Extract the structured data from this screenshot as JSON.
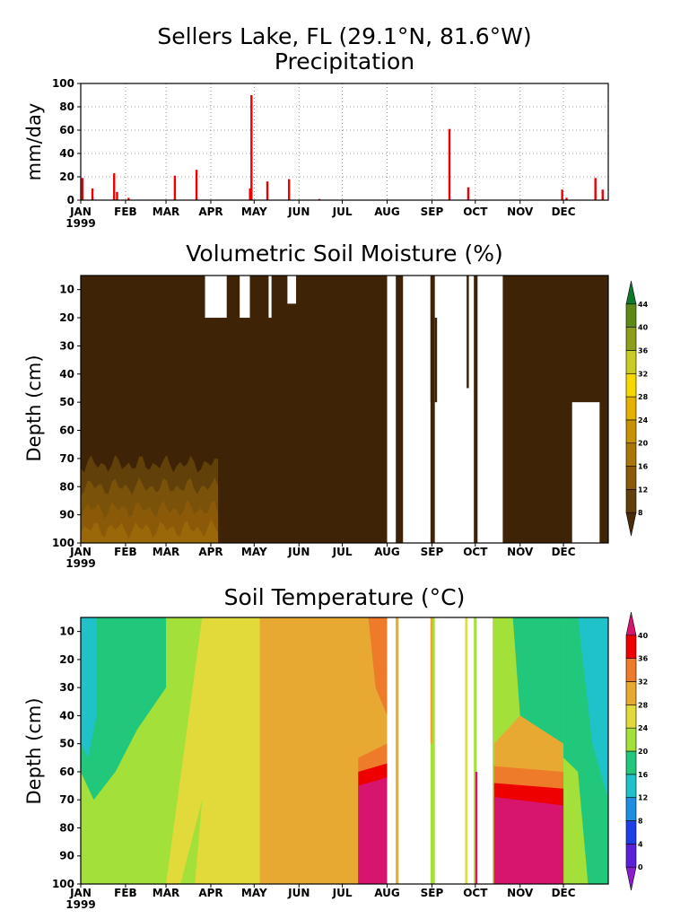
{
  "header": {
    "title": "Sellers Lake, FL (29.1°N, 81.6°W)"
  },
  "panels": {
    "precip": {
      "title": "Precipitation",
      "ylabel": "mm/day"
    },
    "moisture": {
      "title": "Volumetric Soil Moisture (%)",
      "ylabel": "Depth (cm)"
    },
    "temperature": {
      "title": "Soil Temperature (°C)",
      "ylabel": "Depth (cm)"
    }
  },
  "chart_data": [
    {
      "type": "bar",
      "title": "Precipitation",
      "ylabel": "mm/day",
      "xlabel": "",
      "year": "1999",
      "x_ticks": [
        "JAN",
        "FEB",
        "MAR",
        "APR",
        "MAY",
        "JUN",
        "JUL",
        "AUG",
        "SEP",
        "OCT",
        "NOV",
        "DEC"
      ],
      "x_tick_days": [
        1,
        32,
        60,
        91,
        121,
        152,
        182,
        213,
        244,
        274,
        305,
        335
      ],
      "xlim": [
        1,
        366
      ],
      "ylim": [
        0,
        100
      ],
      "y_ticks": [
        0,
        20,
        40,
        60,
        80,
        100
      ],
      "grid": true,
      "color": "#ee0000",
      "series": [
        {
          "day": [
            2,
            9,
            24,
            26,
            34,
            66,
            81,
            118,
            119,
            130,
            145,
            166,
            256,
            269,
            334,
            337,
            357,
            362
          ],
          "mm_per_day": [
            19,
            10,
            23,
            7,
            2,
            21,
            26,
            10,
            90,
            16,
            18,
            1,
            61,
            11,
            9,
            2,
            19,
            9
          ]
        }
      ]
    },
    {
      "type": "heatmap",
      "title": "Volumetric Soil Moisture (%)",
      "ylabel": "Depth (cm)",
      "year": "1999",
      "x_ticks": [
        "JAN",
        "FEB",
        "MAR",
        "APR",
        "MAY",
        "JUN",
        "JUL",
        "AUG",
        "SEP",
        "OCT",
        "NOV",
        "DEC"
      ],
      "y_ticks": [
        10,
        20,
        30,
        40,
        50,
        60,
        70,
        80,
        90,
        100
      ],
      "ylim": [
        100,
        5
      ],
      "colorbar": {
        "levels": [
          8,
          12,
          16,
          20,
          24,
          28,
          32,
          36,
          40,
          44
        ],
        "colors": [
          "#4a2c08",
          "#61400a",
          "#8a5a08",
          "#a87508",
          "#c89106",
          "#e3b200",
          "#f5d800",
          "#c9cc22",
          "#8f9e18",
          "#5e8a14",
          "#0f7a2a"
        ]
      },
      "fields": [
        {
          "from_day": 1,
          "to_day": 96,
          "depth_from": 72,
          "depth_to": 100,
          "value": "12-20"
        },
        {
          "from_day": 1,
          "to_day": 366,
          "depth_from": 5,
          "depth_to": 100,
          "value": "8-12"
        }
      ],
      "missing": [
        {
          "from_day": 213,
          "to_day": 219,
          "depth_from": 5,
          "depth_to": 100
        },
        {
          "from_day": 224,
          "to_day": 243,
          "depth_from": 5,
          "depth_to": 100
        },
        {
          "from_day": 246,
          "to_day": 273,
          "depth_from": 5,
          "depth_to": 100
        },
        {
          "from_day": 275,
          "to_day": 293,
          "depth_from": 5,
          "depth_to": 100
        },
        {
          "from_day": 341,
          "to_day": 360,
          "depth_from": 50,
          "depth_to": 100
        },
        {
          "from_day": 87,
          "to_day": 102,
          "depth_from": 5,
          "depth_to": 20
        },
        {
          "from_day": 111,
          "to_day": 118,
          "depth_from": 5,
          "depth_to": 20
        },
        {
          "from_day": 131,
          "to_day": 133,
          "depth_from": 5,
          "depth_to": 20
        },
        {
          "from_day": 144,
          "to_day": 150,
          "depth_from": 5,
          "depth_to": 15
        }
      ]
    },
    {
      "type": "heatmap",
      "title": "Soil Temperature (°C)",
      "ylabel": "Depth (cm)",
      "year": "1999",
      "x_ticks": [
        "JAN",
        "FEB",
        "MAR",
        "APR",
        "MAY",
        "JUN",
        "JUL",
        "AUG",
        "SEP",
        "OCT",
        "NOV",
        "DEC"
      ],
      "y_ticks": [
        10,
        20,
        30,
        40,
        50,
        60,
        70,
        80,
        90,
        100
      ],
      "ylim": [
        100,
        5
      ],
      "colorbar": {
        "levels": [
          0,
          4,
          8,
          12,
          16,
          20,
          24,
          28,
          32,
          36,
          40
        ],
        "colors": [
          "#8a1ecc",
          "#5a22d8",
          "#1f3fe6",
          "#1f8ee0",
          "#1fc2c9",
          "#21c77a",
          "#a4e03a",
          "#e2d93a",
          "#e8a933",
          "#ee7b2a",
          "#ee0000",
          "#d8156e"
        ]
      },
      "fields": [
        {
          "from_day": 1,
          "to_day": 20,
          "range": "16-24"
        },
        {
          "from_day": 20,
          "to_day": 85,
          "range": "16-24"
        },
        {
          "from_day": 85,
          "to_day": 125,
          "range": "24-28"
        },
        {
          "from_day": 125,
          "to_day": 210,
          "range": "28-32"
        },
        {
          "from_day": 193,
          "to_day": 213,
          "depth_from": 62,
          "depth_to": 100,
          "range": "40+"
        },
        {
          "from_day": 287,
          "to_day": 335,
          "depth_from": 68,
          "depth_to": 100,
          "range": "40+"
        },
        {
          "from_day": 335,
          "to_day": 366,
          "range": "16-24"
        }
      ],
      "missing": [
        {
          "from_day": 213,
          "to_day": 219,
          "depth_from": 5,
          "depth_to": 100
        },
        {
          "from_day": 221,
          "to_day": 243,
          "depth_from": 5,
          "depth_to": 100
        },
        {
          "from_day": 246,
          "to_day": 273,
          "depth_from": 5,
          "depth_to": 100
        },
        {
          "from_day": 275,
          "to_day": 286,
          "depth_from": 5,
          "depth_to": 100
        }
      ]
    }
  ]
}
